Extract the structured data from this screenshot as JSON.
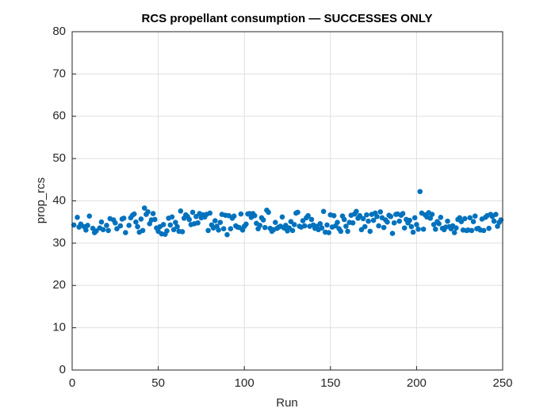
{
  "chart_data": {
    "type": "scatter",
    "title": "RCS propellant consumption — SUCCESSES ONLY",
    "x_label": "Run",
    "y_label": "prop_rcs",
    "color": "#0072bd",
    "grid": true,
    "xlim": [
      0,
      250
    ],
    "xticks": [
      0,
      50,
      100,
      150,
      200,
      250
    ],
    "ylim": [
      0,
      80
    ],
    "yticks": [
      0,
      10,
      20,
      30,
      40,
      50,
      60,
      70,
      80
    ],
    "x": [
      1,
      3,
      4,
      5,
      7,
      8,
      9,
      10,
      12,
      13,
      14,
      16,
      17,
      18,
      20,
      21,
      22,
      24,
      25,
      26,
      28,
      29,
      30,
      31,
      33,
      34,
      35,
      36,
      37,
      38,
      39,
      40,
      41,
      42,
      43,
      44,
      45,
      46,
      47,
      48,
      49,
      50,
      51,
      52,
      53,
      54,
      55,
      56,
      57,
      58,
      59,
      60,
      61,
      62,
      63,
      64,
      65,
      66,
      67,
      68,
      69,
      70,
      71,
      72,
      73,
      74,
      75,
      76,
      77,
      78,
      79,
      80,
      81,
      82,
      83,
      84,
      85,
      86,
      87,
      88,
      89,
      90,
      91,
      92,
      93,
      94,
      95,
      96,
      97,
      98,
      99,
      100,
      101,
      102,
      103,
      104,
      105,
      106,
      107,
      108,
      109,
      110,
      111,
      112,
      113,
      114,
      115,
      116,
      117,
      118,
      119,
      120,
      121,
      122,
      123,
      124,
      125,
      126,
      127,
      128,
      129,
      130,
      131,
      132,
      133,
      134,
      135,
      136,
      137,
      138,
      139,
      140,
      141,
      142,
      143,
      144,
      145,
      146,
      147,
      148,
      149,
      150,
      151,
      152,
      153,
      154,
      155,
      156,
      157,
      158,
      159,
      160,
      161,
      162,
      163,
      164,
      165,
      166,
      167,
      168,
      169,
      170,
      171,
      172,
      173,
      174,
      175,
      176,
      177,
      178,
      179,
      180,
      181,
      182,
      183,
      184,
      185,
      186,
      187,
      188,
      189,
      190,
      191,
      192,
      193,
      194,
      195,
      196,
      197,
      198,
      199,
      200,
      201,
      202,
      203,
      204,
      205,
      206,
      207,
      208,
      209,
      210,
      211,
      212,
      213,
      214,
      215,
      216,
      217,
      218,
      219,
      220,
      221,
      222,
      223,
      224,
      225,
      226,
      227,
      228,
      229,
      230,
      231,
      232,
      233,
      234,
      235,
      236,
      237,
      238,
      239,
      240,
      241,
      242,
      243,
      244,
      245,
      246,
      247,
      248,
      249
    ],
    "values": [
      34.3,
      36.1,
      33.8,
      34.5,
      33.9,
      33.1,
      34.2,
      36.4,
      33.5,
      32.5,
      32.9,
      33.6,
      35.0,
      33.2,
      34.2,
      33.0,
      35.8,
      35.5,
      34.8,
      33.4,
      34.1,
      35.7,
      35.9,
      32.5,
      34.2,
      36.0,
      36.6,
      36.9,
      35.0,
      33.9,
      32.6,
      35.7,
      33.0,
      38.3,
      36.8,
      37.4,
      34.6,
      35.5,
      37.0,
      35.6,
      33.6,
      32.8,
      33.9,
      32.2,
      34.4,
      32.1,
      32.9,
      35.9,
      34.3,
      36.2,
      33.2,
      34.9,
      33.9,
      32.8,
      37.6,
      32.7,
      35.9,
      36.7,
      36.3,
      35.6,
      34.4,
      37.3,
      34.6,
      36.3,
      34.8,
      37.0,
      36.0,
      36.7,
      36.2,
      36.8,
      33.0,
      37.1,
      34.3,
      33.6,
      35.3,
      34.0,
      33.1,
      34.9,
      36.8,
      33.4,
      36.6,
      32.0,
      36.5,
      33.4,
      35.9,
      36.4,
      34.1,
      33.8,
      33.7,
      36.9,
      33.1,
      34.0,
      34.5,
      36.9,
      37.0,
      36.1,
      37.0,
      36.5,
      34.7,
      33.4,
      34.2,
      36.0,
      35.5,
      33.7,
      37.8,
      37.3,
      33.5,
      32.8,
      33.2,
      34.9,
      33.5,
      33.8,
      34.0,
      36.2,
      33.6,
      34.2,
      32.9,
      33.6,
      35.1,
      33.0,
      34.4,
      37.1,
      37.3,
      34.0,
      33.8,
      35.3,
      34.1,
      36.0,
      36.5,
      34.0,
      35.6,
      34.3,
      33.5,
      34.0,
      33.2,
      34.6,
      33.6,
      37.5,
      32.6,
      34.3,
      32.5,
      36.7,
      33.8,
      36.5,
      34.1,
      34.9,
      33.4,
      32.8,
      36.4,
      35.6,
      34.0,
      32.8,
      34.9,
      36.6,
      34.8,
      36.9,
      37.5,
      35.9,
      36.5,
      33.2,
      35.8,
      33.9,
      36.7,
      35.2,
      32.8,
      36.8,
      35.4,
      37.1,
      36.3,
      34.1,
      37.4,
      36.0,
      33.7,
      35.5,
      35.0,
      36.6,
      36.3,
      32.3,
      34.8,
      36.8,
      36.9,
      35.2,
      36.6,
      37.0,
      33.6,
      35.6,
      34.8,
      35.4,
      33.9,
      32.6,
      36.0,
      34.4,
      33.3,
      42.2,
      37.1,
      33.3,
      36.7,
      36.2,
      37.2,
      35.9,
      36.8,
      34.4,
      33.3,
      35.1,
      34.6,
      36.1,
      33.5,
      33.2,
      33.8,
      35.2,
      33.9,
      33.4,
      34.1,
      32.5,
      33.6,
      35.6,
      36.0,
      35.1,
      33.1,
      35.8,
      33.0,
      33.1,
      36.0,
      33.0,
      35.1,
      36.4,
      33.4,
      33.5,
      33.1,
      35.7,
      33.0,
      36.1,
      36.5,
      33.5,
      36.8,
      36.3,
      35.2,
      36.8,
      34.0,
      34.9,
      35.5
    ]
  }
}
